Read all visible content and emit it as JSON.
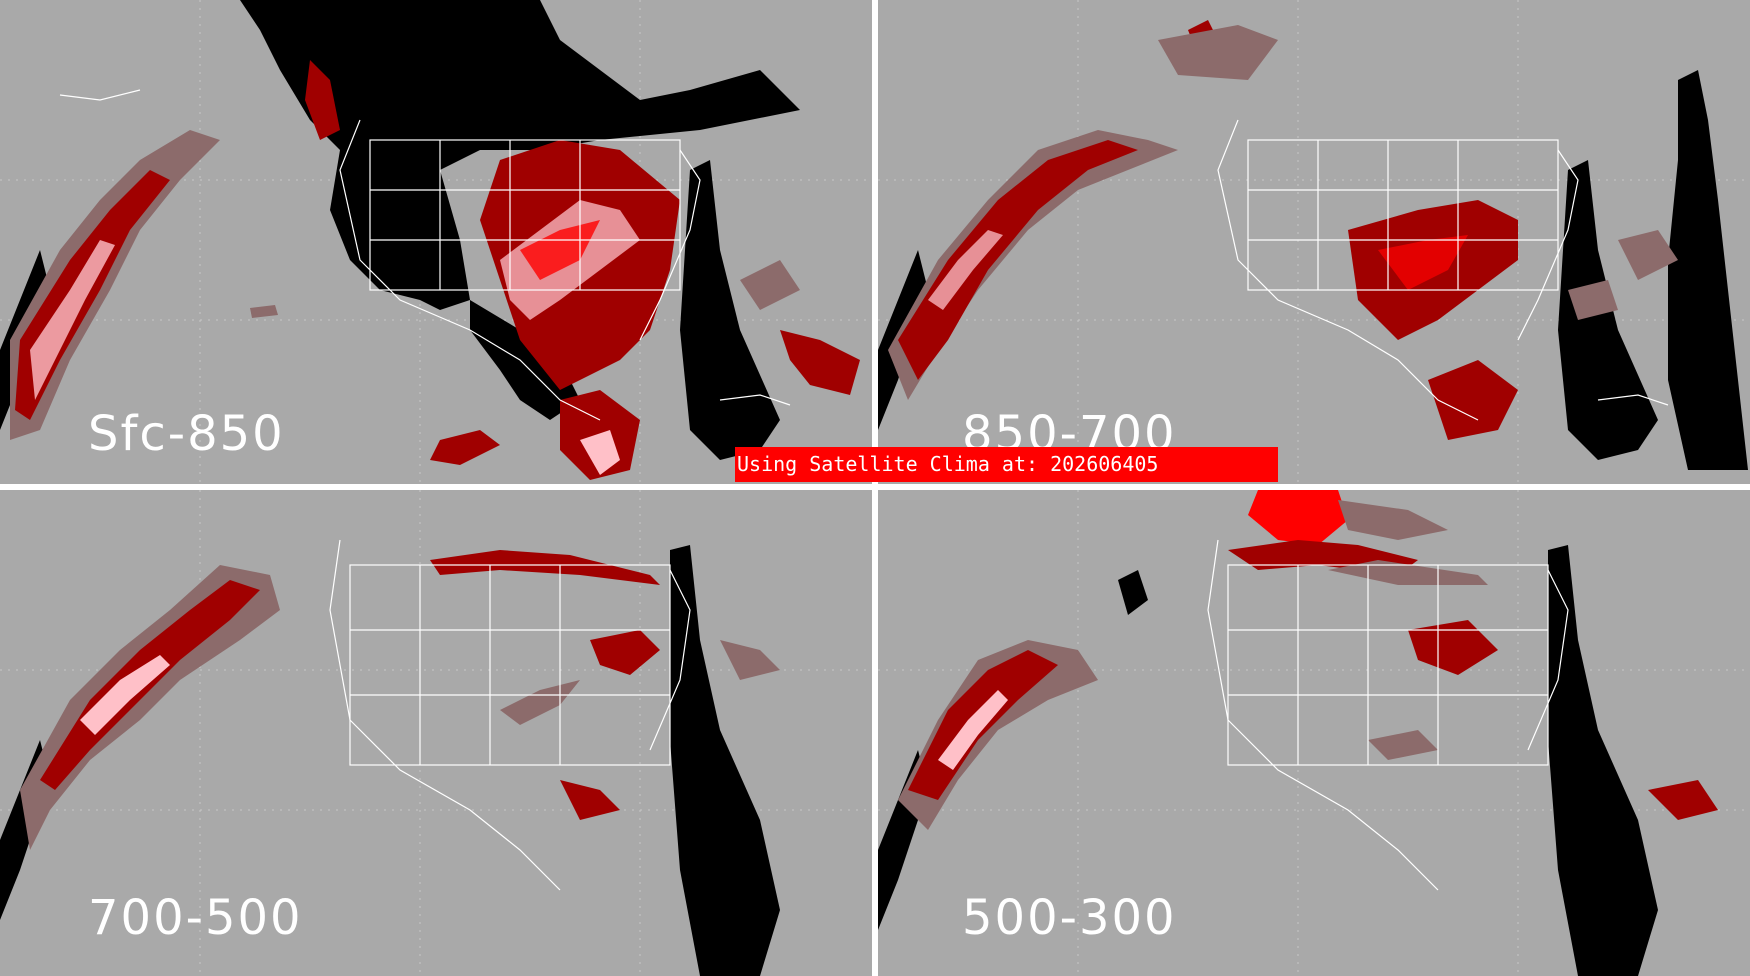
{
  "panels": [
    {
      "label": "Sfc-850"
    },
    {
      "label": "850-700"
    },
    {
      "label": "700-500"
    },
    {
      "label": "500-300"
    }
  ],
  "banner": {
    "text": "Using Satellite Clima at: 202606405"
  },
  "colors": {
    "background": "#a9a9a9",
    "no_data": "#000000",
    "low_prob": "#8c6b6b",
    "mid_prob": "#a00000",
    "high_prob": "#ff0000",
    "very_high_prob": "#ffc0c8",
    "borders": "#ffffff",
    "divider": "#ffffff"
  }
}
